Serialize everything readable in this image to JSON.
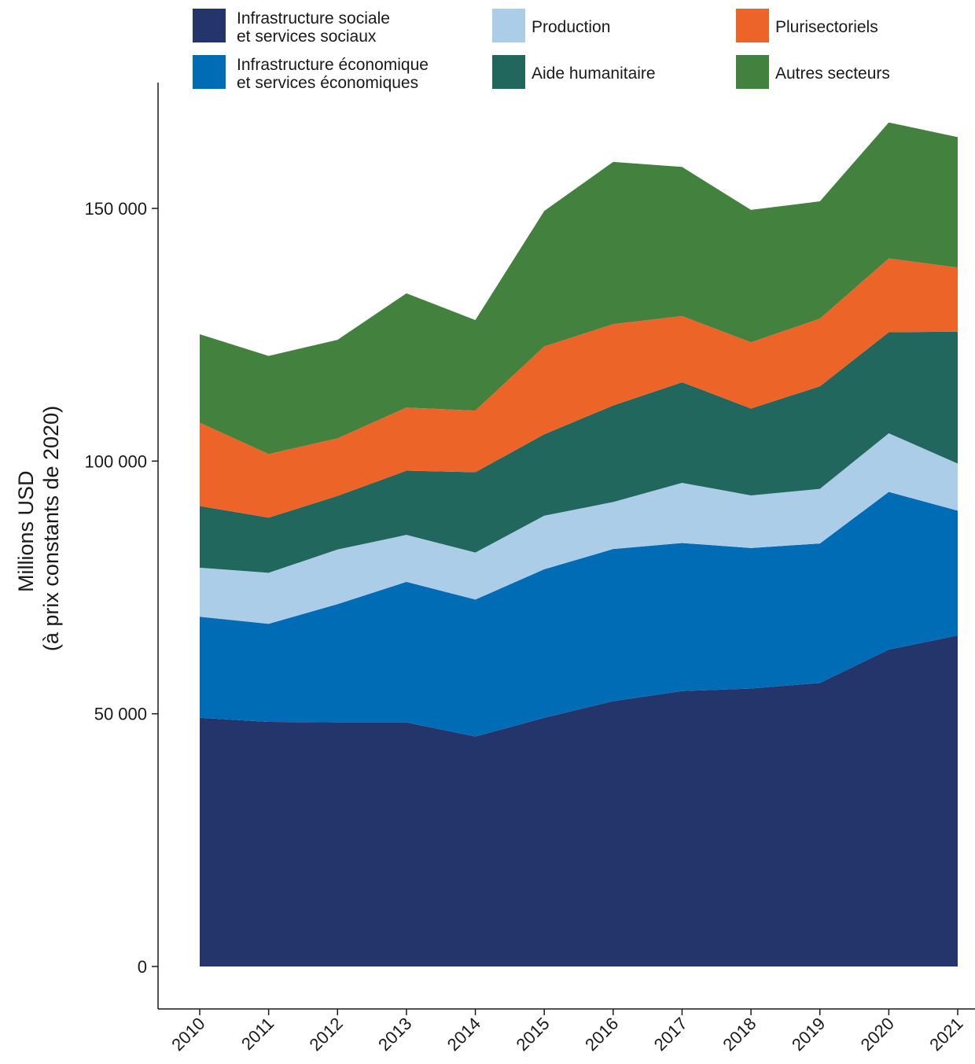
{
  "chart_data": {
    "type": "area",
    "stacked": true,
    "ylabel": [
      "Millions USD",
      "(à prix constants de 2020)"
    ],
    "xlabel": "",
    "x": [
      2010,
      2011,
      2012,
      2013,
      2014,
      2015,
      2016,
      2017,
      2018,
      2019,
      2020,
      2021
    ],
    "ylim": [
      -8500,
      175000
    ],
    "yticks": [
      0,
      50000,
      100000,
      150000
    ],
    "ytick_labels": [
      "0",
      "50 000",
      "100 000",
      "150 000"
    ],
    "grid": false,
    "legend_position": "top",
    "series": [
      {
        "name": "Infrastructure sociale\net services sociaux",
        "color": "#23356a",
        "values": [
          49200,
          48400,
          48300,
          48300,
          45500,
          49200,
          52500,
          54500,
          55000,
          56100,
          62700,
          65500
        ]
      },
      {
        "name": "Infrastructure économique\net services économiques",
        "color": "#006cb6",
        "values": [
          20000,
          19400,
          23400,
          27800,
          27100,
          29400,
          30100,
          29300,
          27800,
          27600,
          31200,
          24700
        ]
      },
      {
        "name": "Production",
        "color": "#abcde8",
        "values": [
          9700,
          10100,
          10800,
          9300,
          9300,
          10600,
          9300,
          11900,
          10400,
          10800,
          11600,
          9300
        ]
      },
      {
        "name": "Aide humanitaire",
        "color": "#21675e",
        "values": [
          12200,
          10900,
          10600,
          12700,
          15900,
          16100,
          19100,
          19900,
          17200,
          20300,
          20000,
          26100
        ]
      },
      {
        "name": "Plurisectoriels",
        "color": "#ed6428",
        "values": [
          16500,
          12600,
          11400,
          12500,
          12200,
          17400,
          16100,
          13100,
          13100,
          13400,
          14600,
          12700
        ]
      },
      {
        "name": "Autres secteurs",
        "color": "#43823e",
        "values": [
          17500,
          19400,
          19500,
          22600,
          17900,
          26800,
          32100,
          29500,
          26200,
          23200,
          26900,
          25800
        ]
      }
    ]
  }
}
